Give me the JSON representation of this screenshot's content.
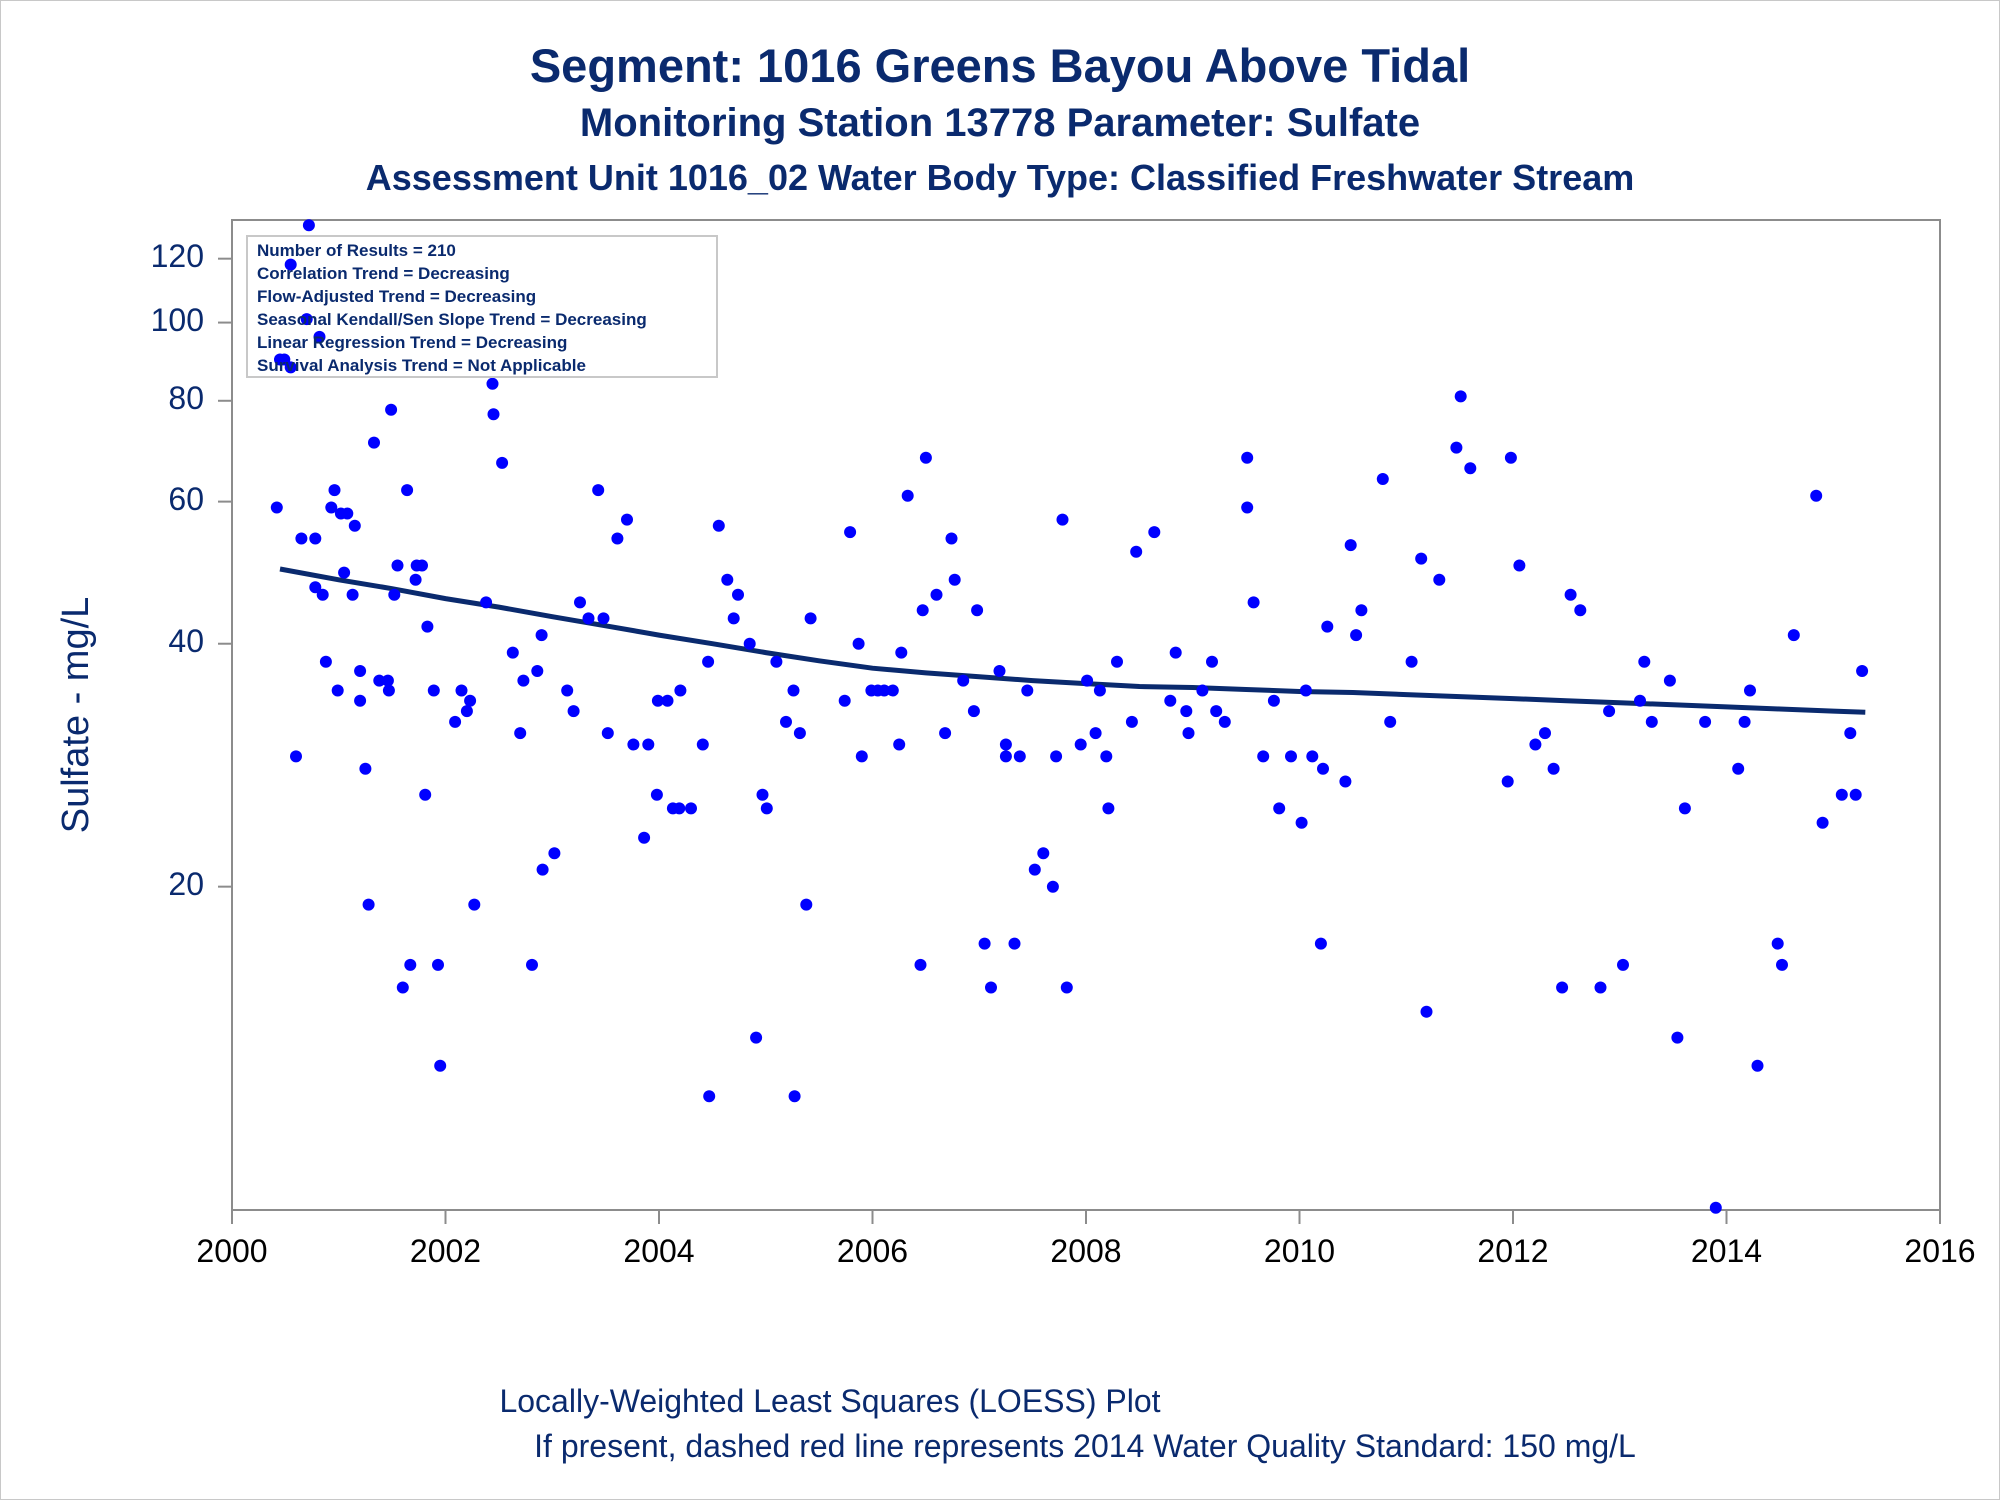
{
  "title": "Segment: 1016  Greens Bayou Above Tidal",
  "subtitle1": "Monitoring Station 13778 Parameter: Sulfate",
  "subtitle2": "Assessment Unit 1016_02   Water Body Type: Classified Freshwater Stream",
  "footnote1": "Locally-Weighted Least Squares (LOESS) Plot",
  "footnote2": "If present, dashed red line represents 2014 Water Quality Standard: 150   mg/L",
  "colors": {
    "points": "#0000ff",
    "loess": "#0a2a6e",
    "text": "#0a2a6e",
    "axis": "#8c8c8c"
  },
  "chart_data": {
    "type": "scatter",
    "ylabel": "Sulfate - mg/L",
    "xlabel": "",
    "y_scale": "log",
    "x_range": [
      2000,
      2016
    ],
    "y_range": [
      7.95,
      134
    ],
    "x_ticks": [
      2000,
      2002,
      2004,
      2006,
      2008,
      2010,
      2012,
      2014,
      2016
    ],
    "y_ticks": [
      20,
      40,
      60,
      80,
      100,
      120
    ],
    "legend_position": "top-left",
    "stats_box": [
      "Number of Results = 210",
      "Correlation Trend = Decreasing",
      "Flow-Adjusted Trend = Decreasing",
      "Seasonal Kendall/Sen Slope Trend = Decreasing",
      "Linear Regression Trend = Decreasing",
      "Survival Analysis Trend = Not Applicable"
    ],
    "series": [
      {
        "type": "scatter",
        "points": [
          [
            2000.42,
            59
          ],
          [
            2000.45,
            90
          ],
          [
            2000.49,
            90
          ],
          [
            2000.55,
            88
          ],
          [
            2000.55,
            118
          ],
          [
            2000.6,
            29
          ],
          [
            2000.65,
            54
          ],
          [
            2000.7,
            101
          ],
          [
            2000.72,
            132
          ],
          [
            2000.78,
            54
          ],
          [
            2000.78,
            47
          ],
          [
            2000.82,
            96
          ],
          [
            2000.85,
            46
          ],
          [
            2000.88,
            38
          ],
          [
            2000.93,
            59
          ],
          [
            2000.96,
            62
          ],
          [
            2000.99,
            35
          ],
          [
            2001.02,
            58
          ],
          [
            2001.05,
            49
          ],
          [
            2001.08,
            58
          ],
          [
            2001.13,
            46
          ],
          [
            2001.15,
            56
          ],
          [
            2001.2,
            34
          ],
          [
            2001.2,
            37
          ],
          [
            2001.25,
            28
          ],
          [
            2001.28,
            19
          ],
          [
            2001.33,
            71
          ],
          [
            2001.38,
            36
          ],
          [
            2001.46,
            36
          ],
          [
            2001.47,
            35
          ],
          [
            2001.49,
            78
          ],
          [
            2001.52,
            46
          ],
          [
            2001.55,
            50
          ],
          [
            2001.6,
            15
          ],
          [
            2001.64,
            62
          ],
          [
            2001.67,
            16
          ],
          [
            2001.72,
            48
          ],
          [
            2001.73,
            50
          ],
          [
            2001.78,
            50
          ],
          [
            2001.81,
            26
          ],
          [
            2001.83,
            42
          ],
          [
            2001.89,
            35
          ],
          [
            2001.93,
            16
          ],
          [
            2001.95,
            12
          ],
          [
            2002.09,
            32
          ],
          [
            2002.15,
            35
          ],
          [
            2002.2,
            33
          ],
          [
            2002.23,
            34
          ],
          [
            2002.27,
            19
          ],
          [
            2002.38,
            45
          ],
          [
            2002.44,
            84
          ],
          [
            2002.45,
            77
          ],
          [
            2002.53,
            67
          ],
          [
            2002.63,
            39
          ],
          [
            2002.7,
            31
          ],
          [
            2002.73,
            36
          ],
          [
            2002.81,
            16
          ],
          [
            2002.86,
            37
          ],
          [
            2002.9,
            41
          ],
          [
            2002.91,
            21
          ],
          [
            2003.02,
            22
          ],
          [
            2003.14,
            35
          ],
          [
            2003.2,
            33
          ],
          [
            2003.26,
            45
          ],
          [
            2003.34,
            43
          ],
          [
            2003.43,
            62
          ],
          [
            2003.48,
            43
          ],
          [
            2003.52,
            31
          ],
          [
            2003.61,
            54
          ],
          [
            2003.7,
            57
          ],
          [
            2003.76,
            30
          ],
          [
            2003.86,
            23
          ],
          [
            2003.9,
            30
          ],
          [
            2003.98,
            26
          ],
          [
            2003.99,
            34
          ],
          [
            2004.08,
            34
          ],
          [
            2004.13,
            25
          ],
          [
            2004.19,
            25
          ],
          [
            2004.2,
            35
          ],
          [
            2004.3,
            25
          ],
          [
            2004.41,
            30
          ],
          [
            2004.46,
            38
          ],
          [
            2004.47,
            11
          ],
          [
            2004.56,
            56
          ],
          [
            2004.64,
            48
          ],
          [
            2004.7,
            43
          ],
          [
            2004.74,
            46
          ],
          [
            2004.85,
            40
          ],
          [
            2004.91,
            13
          ],
          [
            2004.97,
            26
          ],
          [
            2005.01,
            25
          ],
          [
            2005.1,
            38
          ],
          [
            2005.19,
            32
          ],
          [
            2005.26,
            35
          ],
          [
            2005.27,
            11
          ],
          [
            2005.32,
            31
          ],
          [
            2005.38,
            19
          ],
          [
            2005.42,
            43
          ],
          [
            2005.74,
            34
          ],
          [
            2005.79,
            55
          ],
          [
            2005.87,
            40
          ],
          [
            2005.9,
            29
          ],
          [
            2005.99,
            35
          ],
          [
            2006.05,
            35
          ],
          [
            2006.11,
            35
          ],
          [
            2006.19,
            35
          ],
          [
            2006.25,
            30
          ],
          [
            2006.27,
            39
          ],
          [
            2006.33,
            61
          ],
          [
            2006.45,
            16
          ],
          [
            2006.47,
            44
          ],
          [
            2006.5,
            68
          ],
          [
            2006.6,
            46
          ],
          [
            2006.68,
            31
          ],
          [
            2006.74,
            54
          ],
          [
            2006.77,
            48
          ],
          [
            2006.85,
            36
          ],
          [
            2006.95,
            33
          ],
          [
            2006.98,
            44
          ],
          [
            2007.05,
            17
          ],
          [
            2007.11,
            15
          ],
          [
            2007.19,
            37
          ],
          [
            2007.25,
            30
          ],
          [
            2007.25,
            29
          ],
          [
            2007.33,
            17
          ],
          [
            2007.38,
            29
          ],
          [
            2007.45,
            35
          ],
          [
            2007.52,
            21
          ],
          [
            2007.6,
            22
          ],
          [
            2007.69,
            20
          ],
          [
            2007.72,
            29
          ],
          [
            2007.78,
            57
          ],
          [
            2007.82,
            15
          ],
          [
            2007.95,
            30
          ],
          [
            2008.01,
            36
          ],
          [
            2008.09,
            31
          ],
          [
            2008.13,
            35
          ],
          [
            2008.19,
            29
          ],
          [
            2008.21,
            25
          ],
          [
            2008.29,
            38
          ],
          [
            2008.43,
            32
          ],
          [
            2008.47,
            52
          ],
          [
            2008.64,
            55
          ],
          [
            2008.79,
            34
          ],
          [
            2008.84,
            39
          ],
          [
            2008.94,
            33
          ],
          [
            2008.96,
            31
          ],
          [
            2009.09,
            35
          ],
          [
            2009.18,
            38
          ],
          [
            2009.22,
            33
          ],
          [
            2009.3,
            32
          ],
          [
            2009.51,
            68
          ],
          [
            2009.51,
            59
          ],
          [
            2009.57,
            45
          ],
          [
            2009.66,
            29
          ],
          [
            2009.76,
            34
          ],
          [
            2009.81,
            25
          ],
          [
            2009.92,
            29
          ],
          [
            2010.02,
            24
          ],
          [
            2010.06,
            35
          ],
          [
            2010.12,
            29
          ],
          [
            2010.2,
            17
          ],
          [
            2010.22,
            28
          ],
          [
            2010.26,
            42
          ],
          [
            2010.43,
            27
          ],
          [
            2010.48,
            53
          ],
          [
            2010.53,
            41
          ],
          [
            2010.58,
            44
          ],
          [
            2010.78,
            64
          ],
          [
            2010.85,
            32
          ],
          [
            2011.05,
            38
          ],
          [
            2011.14,
            51
          ],
          [
            2011.19,
            14
          ],
          [
            2011.31,
            48
          ],
          [
            2011.47,
            70
          ],
          [
            2011.51,
            81
          ],
          [
            2011.6,
            66
          ],
          [
            2011.95,
            27
          ],
          [
            2011.98,
            68
          ],
          [
            2012.06,
            50
          ],
          [
            2012.21,
            30
          ],
          [
            2012.3,
            31
          ],
          [
            2012.38,
            28
          ],
          [
            2012.46,
            15
          ],
          [
            2012.54,
            46
          ],
          [
            2012.63,
            44
          ],
          [
            2012.82,
            15
          ],
          [
            2012.9,
            33
          ],
          [
            2013.03,
            16
          ],
          [
            2013.19,
            34
          ],
          [
            2013.23,
            38
          ],
          [
            2013.3,
            32
          ],
          [
            2013.47,
            36
          ],
          [
            2013.54,
            13
          ],
          [
            2013.61,
            25
          ],
          [
            2013.8,
            32
          ],
          [
            2013.9,
            8
          ],
          [
            2014.11,
            28
          ],
          [
            2014.17,
            32
          ],
          [
            2014.22,
            35
          ],
          [
            2014.29,
            12
          ],
          [
            2014.48,
            17
          ],
          [
            2014.52,
            16
          ],
          [
            2014.63,
            41
          ],
          [
            2014.84,
            61
          ],
          [
            2014.9,
            24
          ],
          [
            2015.08,
            26
          ],
          [
            2015.16,
            31
          ],
          [
            2015.21,
            26
          ],
          [
            2015.27,
            37
          ]
        ]
      },
      {
        "type": "line",
        "points": [
          [
            2000.45,
            49.5
          ],
          [
            2001.0,
            48
          ],
          [
            2001.5,
            46.8
          ],
          [
            2002.0,
            45.5
          ],
          [
            2002.5,
            44.4
          ],
          [
            2003.0,
            43.2
          ],
          [
            2003.5,
            42.1
          ],
          [
            2004.0,
            41
          ],
          [
            2004.5,
            40
          ],
          [
            2005.0,
            39
          ],
          [
            2005.5,
            38.1
          ],
          [
            2006.0,
            37.3
          ],
          [
            2006.5,
            36.8
          ],
          [
            2007.0,
            36.4
          ],
          [
            2007.5,
            36
          ],
          [
            2008.0,
            35.7
          ],
          [
            2008.5,
            35.4
          ],
          [
            2009.0,
            35.3
          ],
          [
            2009.5,
            35.1
          ],
          [
            2010.0,
            34.9
          ],
          [
            2010.5,
            34.8
          ],
          [
            2011.0,
            34.6
          ],
          [
            2011.5,
            34.4
          ],
          [
            2012.0,
            34.2
          ],
          [
            2012.5,
            34
          ],
          [
            2013.0,
            33.8
          ],
          [
            2013.5,
            33.6
          ],
          [
            2014.0,
            33.4
          ],
          [
            2014.5,
            33.2
          ],
          [
            2015.0,
            33
          ],
          [
            2015.3,
            32.9
          ]
        ]
      }
    ]
  }
}
